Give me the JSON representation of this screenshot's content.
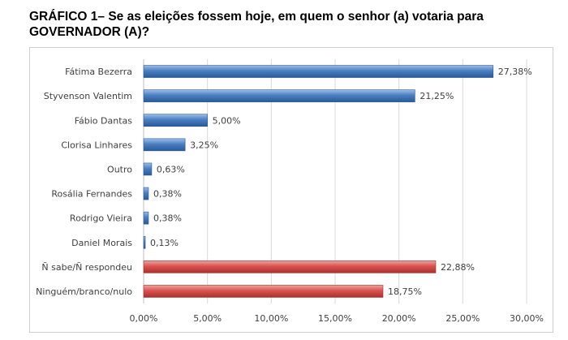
{
  "title": "GRÁFICO 1– Se as eleições fossem hoje, em quem o senhor (a) votaria para GOVERNADOR (A)?",
  "colors": {
    "blue": "#4a7fc1",
    "red": "#d9534f",
    "grid": "#d9d9d9"
  },
  "chart_data": {
    "type": "bar",
    "orientation": "horizontal",
    "title": "GRÁFICO 1– Se as eleições fossem hoje, em quem o senhor (a) votaria para GOVERNADOR (A)?",
    "categories": [
      "Fátima Bezerra",
      "Styvenson Valentim",
      "Fábio Dantas",
      "Clorisa Linhares",
      "Outro",
      "Rosália Fernandes",
      "Rodrigo Vieira",
      "Daniel Morais",
      "Ñ sabe/Ñ respondeu",
      "Ninguém/branco/nulo"
    ],
    "values": [
      27.38,
      21.25,
      5.0,
      3.25,
      0.63,
      0.38,
      0.38,
      0.13,
      22.88,
      18.75
    ],
    "value_labels": [
      "27,38%",
      "21,25%",
      "5,00%",
      "3,25%",
      "0,63%",
      "0,38%",
      "0,38%",
      "0,13%",
      "22,88%",
      "18,75%"
    ],
    "bar_colors": [
      "blue",
      "blue",
      "blue",
      "blue",
      "blue",
      "blue",
      "blue",
      "blue",
      "red",
      "red"
    ],
    "xlim": [
      0,
      30
    ],
    "xticks": [
      0,
      5,
      10,
      15,
      20,
      25,
      30
    ],
    "xtick_labels": [
      "0,00%",
      "5,00%",
      "10,00%",
      "15,00%",
      "20,00%",
      "25,00%",
      "30,00%"
    ],
    "xlabel": "",
    "ylabel": "",
    "grid": true,
    "legend": "none"
  }
}
